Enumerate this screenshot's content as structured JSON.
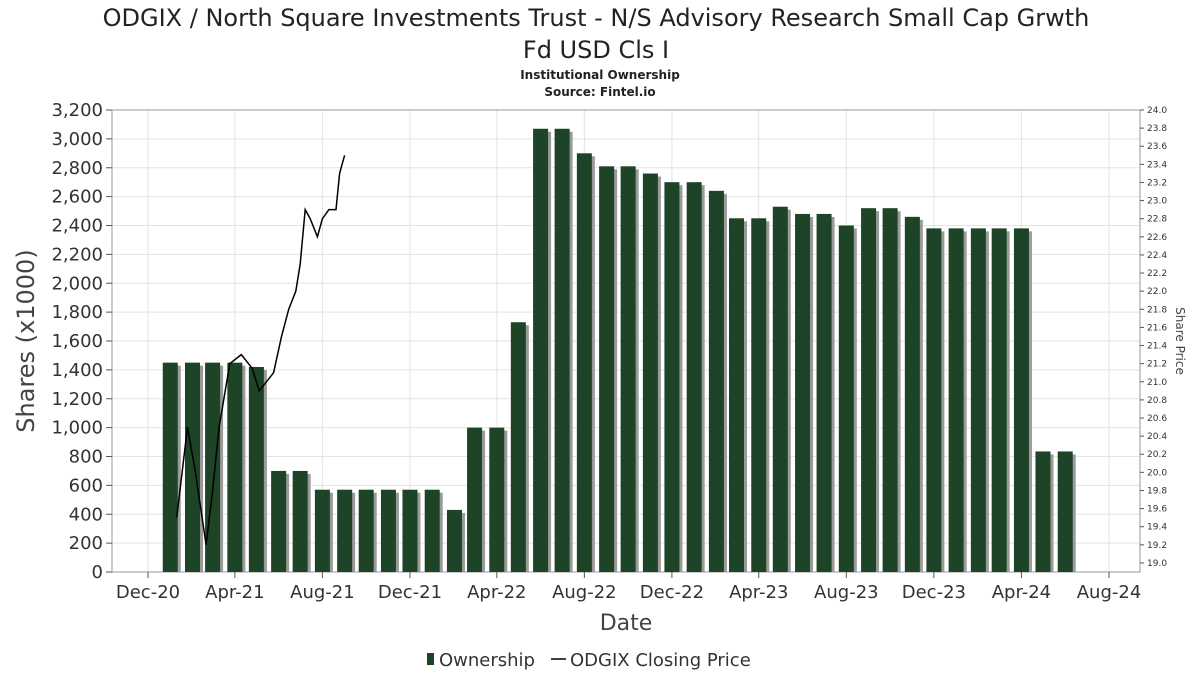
{
  "chart_data": {
    "type": "bar",
    "title_line1": "ODGIX / North Square Investments Trust - N/S Advisory Research Small Cap Grwth",
    "title_line2": "Fd USD Cls I",
    "subtitle": "Institutional Ownership",
    "source": "Source: Fintel.io",
    "xlabel": "Date",
    "ylabel": "Shares (x1000)",
    "y2label": "Share Price",
    "ylim": [
      0,
      3200
    ],
    "y2lim": [
      18.9,
      24.0
    ],
    "x_ticks": [
      "Dec-20",
      "Apr-21",
      "Aug-21",
      "Dec-21",
      "Apr-22",
      "Aug-22",
      "Dec-22",
      "Apr-23",
      "Aug-23",
      "Dec-23",
      "Apr-24",
      "Aug-24"
    ],
    "y_ticks": [
      "0",
      "200",
      "400",
      "600",
      "800",
      "1,000",
      "1,200",
      "1,400",
      "1,600",
      "1,800",
      "2,000",
      "2,200",
      "2,400",
      "2,600",
      "2,800",
      "3,000",
      "3,200"
    ],
    "y2_ticks": [
      "19.0",
      "19.2",
      "19.4",
      "19.6",
      "19.8",
      "20.0",
      "20.2",
      "20.4",
      "20.6",
      "20.8",
      "21.0",
      "21.2",
      "21.4",
      "21.6",
      "21.8",
      "22.0",
      "22.2",
      "22.4",
      "22.6",
      "22.8",
      "23.0",
      "23.2",
      "23.4",
      "23.6",
      "23.8",
      "24.0"
    ],
    "series": [
      {
        "name": "Ownership",
        "color": "#1e4428",
        "x": [
          "2021-01-01",
          "2021-02-01",
          "2021-03-01",
          "2021-04-01",
          "2021-05-01",
          "2021-06-01",
          "2021-07-01",
          "2021-08-01",
          "2021-09-01",
          "2021-10-01",
          "2021-11-01",
          "2021-12-01",
          "2022-01-01",
          "2022-02-01",
          "2022-03-01",
          "2022-04-01",
          "2022-05-01",
          "2022-06-01",
          "2022-07-01",
          "2022-08-01",
          "2022-09-01",
          "2022-10-01",
          "2022-11-01",
          "2022-12-01",
          "2023-01-01",
          "2023-02-01",
          "2023-03-01",
          "2023-04-01",
          "2023-05-01",
          "2023-06-01",
          "2023-07-01",
          "2023-08-01",
          "2023-09-01",
          "2023-10-01",
          "2023-11-01",
          "2023-12-01",
          "2024-01-01",
          "2024-02-01",
          "2024-03-01",
          "2024-04-01",
          "2024-05-01",
          "2024-06-01"
        ],
        "values": [
          1450,
          1450,
          1450,
          1450,
          1420,
          700,
          700,
          570,
          570,
          570,
          570,
          570,
          570,
          430,
          1000,
          1000,
          1730,
          3070,
          3070,
          2900,
          2810,
          2810,
          2760,
          2700,
          2700,
          2640,
          2450,
          2450,
          2530,
          2480,
          2480,
          2400,
          2520,
          2520,
          2460,
          2380,
          2380,
          2380,
          2380,
          2380,
          835,
          835
        ]
      },
      {
        "name": "ODGIX Closing Price",
        "color": "#000000",
        "x": [
          "2021-01-10",
          "2021-01-25",
          "2021-02-05",
          "2021-02-20",
          "2021-03-01",
          "2021-03-10",
          "2021-03-25",
          "2021-04-10",
          "2021-04-25",
          "2021-05-05",
          "2021-05-15",
          "2021-05-25",
          "2021-06-05",
          "2021-06-15",
          "2021-06-25",
          "2021-07-01",
          "2021-07-08",
          "2021-07-15",
          "2021-07-25",
          "2021-08-01",
          "2021-08-10",
          "2021-08-20",
          "2021-08-25",
          "2021-09-01"
        ],
        "values": [
          19.5,
          20.5,
          20.0,
          19.2,
          19.8,
          20.5,
          21.2,
          21.3,
          21.15,
          20.9,
          21.0,
          21.1,
          21.5,
          21.8,
          22.0,
          22.3,
          22.9,
          22.8,
          22.6,
          22.8,
          22.9,
          22.9,
          23.3,
          23.5
        ]
      }
    ],
    "grid": true,
    "legend_placement": "bottom-center"
  }
}
